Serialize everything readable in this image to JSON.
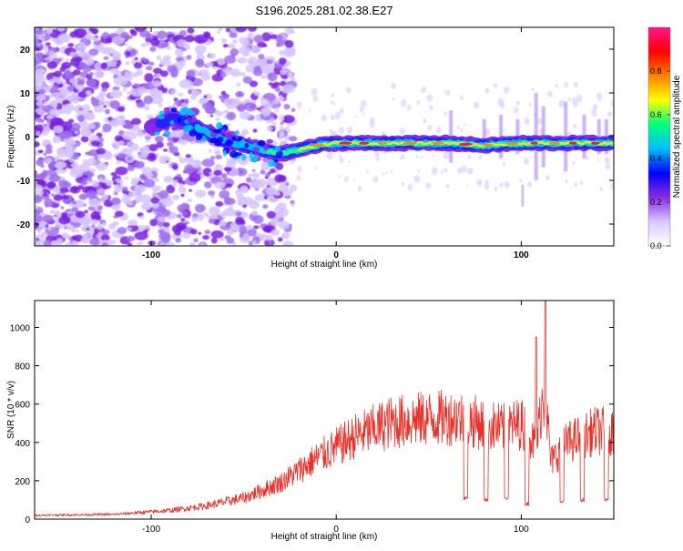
{
  "title": "S196.2025.281.02.38.E27",
  "chart_data": [
    {
      "type": "heatmap",
      "title": "S196.2025.281.02.38.E27",
      "xlabel": "Height of straight line (km)",
      "ylabel": "Frequency (Hz)",
      "xlim": [
        -163,
        150
      ],
      "ylim": [
        -25,
        25
      ],
      "x_ticks": [
        -100,
        0,
        100
      ],
      "y_ticks": [
        -20,
        -10,
        0,
        10,
        20
      ],
      "ridge": {
        "x": [
          -163,
          -130,
          -110,
          -100,
          -90,
          -85,
          -80,
          -70,
          -60,
          -50,
          -40,
          -30,
          -20,
          -10,
          0,
          20,
          40,
          60,
          80,
          100,
          120,
          140,
          150
        ],
        "freq_hz": [
          0,
          0,
          1,
          2,
          4,
          4,
          3,
          1,
          -1,
          -2,
          -3,
          -4,
          -3,
          -2,
          -1.5,
          -1.5,
          -1.5,
          -1.5,
          -2,
          -1.5,
          -1.5,
          -1.5,
          -1.5
        ]
      },
      "colorbar": {
        "label": "Normalized spectral amplitude",
        "range": [
          0,
          1
        ],
        "ticks": [
          "0.0",
          "0.2",
          "0.4",
          "0.6",
          "0.8"
        ],
        "tick_values": [
          0.0,
          0.2,
          0.4,
          0.6,
          0.8
        ],
        "colors": [
          "#ffffff",
          "#d8c8ff",
          "#8a2be2",
          "#0000ff",
          "#00bfff",
          "#00ff80",
          "#ffff00",
          "#ff8000",
          "#ff0000",
          "#ff1493"
        ]
      }
    },
    {
      "type": "line",
      "xlabel": "Height of straight line (km)",
      "ylabel": "SNR (10 * v/v)",
      "xlim": [
        -163,
        150
      ],
      "ylim": [
        0,
        1140
      ],
      "x_ticks": [
        -100,
        0,
        100
      ],
      "y_ticks": [
        0,
        200,
        400,
        600,
        800,
        1000
      ],
      "series": [
        {
          "name": "SNR",
          "color": "#e8312a",
          "trend_x": [
            -163,
            -120,
            -90,
            -70,
            -50,
            -30,
            -10,
            10,
            30,
            50,
            66,
            90,
            100,
            108,
            111,
            113,
            116,
            125,
            140,
            150
          ],
          "trend_y": [
            20,
            25,
            45,
            70,
            110,
            190,
            320,
            430,
            505,
            525,
            530,
            470,
            500,
            380,
            600,
            650,
            300,
            400,
            460,
            460
          ],
          "dips": [
            {
              "x0": 69,
              "x1": 71,
              "y": 110
            },
            {
              "x0": 80,
              "x1": 82,
              "y": 100
            },
            {
              "x0": 91,
              "x1": 93,
              "y": 110
            },
            {
              "x0": 102,
              "x1": 104,
              "y": 80
            },
            {
              "x0": 121,
              "x1": 123,
              "y": 90
            },
            {
              "x0": 132,
              "x1": 134,
              "y": 100
            },
            {
              "x0": 145,
              "x1": 147,
              "y": 100
            }
          ],
          "spikes": [
            {
              "x": 108,
              "y": 950
            },
            {
              "x": 113,
              "y": 1140
            }
          ]
        }
      ]
    }
  ]
}
